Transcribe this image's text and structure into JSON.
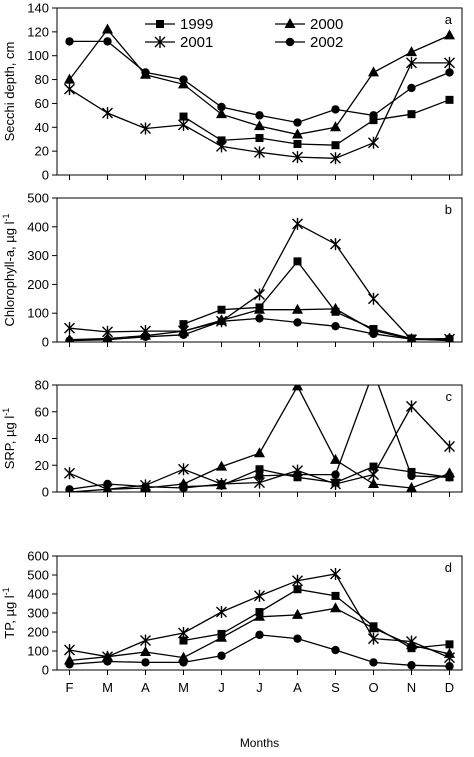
{
  "months": [
    "F",
    "M",
    "A",
    "M",
    "J",
    "J",
    "A",
    "S",
    "O",
    "N",
    "D"
  ],
  "xlabel": "Months",
  "legend": [
    {
      "name": "1999",
      "marker": "square"
    },
    {
      "name": "2000",
      "marker": "triangle"
    },
    {
      "name": "2001",
      "marker": "star"
    },
    {
      "name": "2002",
      "marker": "circle"
    }
  ],
  "chart_data": [
    {
      "type": "line",
      "panel": "a",
      "ylabel": "Secchi depth, cm",
      "ylim": [
        0,
        140
      ],
      "yticks": [
        0,
        20,
        40,
        60,
        80,
        100,
        120,
        140
      ],
      "series": [
        {
          "name": "1999",
          "values": [
            null,
            null,
            null,
            49,
            29,
            31,
            26,
            25,
            46,
            51,
            63
          ]
        },
        {
          "name": "2000",
          "values": [
            80,
            122,
            84,
            76,
            51,
            41,
            34,
            40,
            86,
            103,
            117
          ]
        },
        {
          "name": "2001",
          "values": [
            72,
            52,
            39,
            42,
            24,
            19,
            15,
            14,
            27,
            94,
            94
          ]
        },
        {
          "name": "2002",
          "values": [
            112,
            112,
            86,
            80,
            57,
            50,
            44,
            55,
            50,
            73,
            86
          ]
        }
      ]
    },
    {
      "type": "line",
      "panel": "b",
      "ylabel": "Chlorophyll-a, µg l",
      "ylabel_sup": "-1",
      "ylim": [
        0,
        500
      ],
      "yticks": [
        0,
        100,
        200,
        300,
        400,
        500
      ],
      "series": [
        {
          "name": "1999",
          "values": [
            null,
            null,
            null,
            62,
            112,
            120,
            280,
            105,
            45,
            12,
            8
          ]
        },
        {
          "name": "2000",
          "values": [
            8,
            12,
            22,
            38,
            75,
            112,
            112,
            115,
            40,
            10,
            5
          ]
        },
        {
          "name": "2001",
          "values": [
            48,
            35,
            38,
            38,
            72,
            165,
            410,
            340,
            150,
            8,
            10
          ]
        },
        {
          "name": "2002",
          "values": [
            5,
            8,
            18,
            25,
            72,
            82,
            68,
            55,
            28,
            10,
            12
          ]
        }
      ]
    },
    {
      "type": "line",
      "panel": "c",
      "ylabel": "SRP, µg l",
      "ylabel_sup": "-1",
      "ylim": [
        0,
        80
      ],
      "yticks": [
        0,
        20,
        40,
        60,
        80
      ],
      "series": [
        {
          "name": "1999",
          "values": [
            null,
            null,
            null,
            4,
            5,
            17,
            11,
            7,
            19,
            15,
            11
          ]
        },
        {
          "name": "2000",
          "values": [
            0,
            2,
            3,
            6,
            19,
            29,
            79,
            24,
            6,
            3,
            14
          ]
        },
        {
          "name": "2001",
          "values": [
            14,
            2,
            5,
            17,
            6,
            7,
            16,
            6,
            13,
            64,
            34
          ]
        },
        {
          "name": "2002",
          "values": [
            2,
            6,
            4,
            3,
            6,
            12,
            13,
            13,
            90,
            12,
            11
          ]
        }
      ]
    },
    {
      "type": "line",
      "panel": "d",
      "ylabel": "TP, µg l",
      "ylabel_sup": "-1",
      "ylim": [
        0,
        600
      ],
      "yticks": [
        0,
        100,
        200,
        300,
        400,
        500,
        600
      ],
      "series": [
        {
          "name": "1999",
          "values": [
            null,
            null,
            null,
            155,
            190,
            305,
            425,
            390,
            230,
            115,
            135
          ]
        },
        {
          "name": "2000",
          "values": [
            50,
            70,
            95,
            65,
            170,
            280,
            290,
            325,
            220,
            130,
            85
          ]
        },
        {
          "name": "2001",
          "values": [
            105,
            70,
            155,
            195,
            305,
            390,
            470,
            505,
            165,
            150,
            65
          ]
        },
        {
          "name": "2002",
          "values": [
            30,
            45,
            40,
            40,
            75,
            185,
            165,
            105,
            40,
            25,
            20
          ]
        }
      ]
    }
  ]
}
